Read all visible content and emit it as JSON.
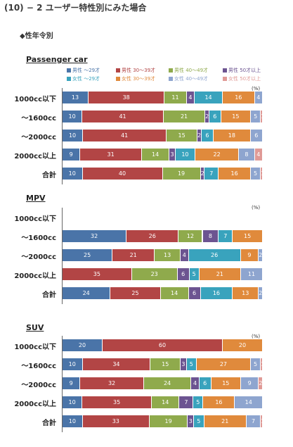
{
  "page": {
    "title": "(10) − 2 ユーザー特性別にみた場合",
    "subtitle": "◆性年令別"
  },
  "unit_label": "(%)",
  "colors": {
    "male_u29": "#4a74a8",
    "male_30s": "#b24545",
    "male_40s": "#8faa4c",
    "male_50plus": "#6c5491",
    "female_u29": "#39a3bd",
    "female_30s": "#e08a3c",
    "female_40s": "#8ea5cf",
    "female_50plus": "#e09a96"
  },
  "legend": [
    {
      "key": "male_u29",
      "label": "男性 ～29才"
    },
    {
      "key": "male_30s",
      "label": "男性 30～39才"
    },
    {
      "key": "male_40s",
      "label": "男性 40～49才"
    },
    {
      "key": "male_50plus",
      "label": "男性 50才以上"
    },
    {
      "key": "female_u29",
      "label": "女性 ～29才"
    },
    {
      "key": "female_30s",
      "label": "女性 30～39才"
    },
    {
      "key": "female_40s",
      "label": "女性 40～49才"
    },
    {
      "key": "female_50plus",
      "label": "女性 50才以上"
    }
  ],
  "chart_data": [
    {
      "type": "bar",
      "stacked": true,
      "orientation": "horizontal",
      "title": "Passenger car",
      "xlim": [
        0,
        100
      ],
      "categories": [
        "1000cc以下",
        "～1600cc",
        "～2000cc",
        "2000cc以上",
        "合計"
      ],
      "series": [
        {
          "name": "男性 ～29才",
          "key": "male_u29",
          "values": [
            13,
            10,
            10,
            9,
            10
          ]
        },
        {
          "name": "男性 30～39才",
          "key": "male_30s",
          "values": [
            38,
            41,
            41,
            31,
            40
          ]
        },
        {
          "name": "男性 40～49才",
          "key": "male_40s",
          "values": [
            11,
            21,
            15,
            14,
            19
          ]
        },
        {
          "name": "男性 50才以上",
          "key": "male_50plus",
          "values": [
            4,
            2,
            2,
            3,
            2
          ]
        },
        {
          "name": "女性 ～29才",
          "key": "female_u29",
          "values": [
            14,
            6,
            6,
            10,
            7
          ]
        },
        {
          "name": "女性 30～39才",
          "key": "female_30s",
          "values": [
            16,
            15,
            18,
            22,
            16
          ]
        },
        {
          "name": "女性 40～49才",
          "key": "female_40s",
          "values": [
            4,
            5,
            6,
            8,
            5
          ]
        },
        {
          "name": "女性 50才以上",
          "key": "female_50plus",
          "values": [
            0,
            1,
            0,
            4,
            1
          ]
        }
      ]
    },
    {
      "type": "bar",
      "stacked": true,
      "orientation": "horizontal",
      "title": "MPV",
      "xlim": [
        0,
        100
      ],
      "categories": [
        "1000cc以下",
        "～1600cc",
        "～2000cc",
        "2000cc以上",
        "合計"
      ],
      "series": [
        {
          "name": "男性 ～29才",
          "key": "male_u29",
          "values": [
            null,
            32,
            25,
            0,
            24
          ]
        },
        {
          "name": "男性 30～39才",
          "key": "male_30s",
          "values": [
            null,
            26,
            21,
            35,
            25
          ]
        },
        {
          "name": "男性 40～49才",
          "key": "male_40s",
          "values": [
            null,
            12,
            13,
            23,
            14
          ]
        },
        {
          "name": "男性 50才以上",
          "key": "male_50plus",
          "values": [
            null,
            8,
            4,
            6,
            6
          ]
        },
        {
          "name": "女性 ～29才",
          "key": "female_u29",
          "values": [
            null,
            7,
            26,
            5,
            16
          ]
        },
        {
          "name": "女性 30～39才",
          "key": "female_30s",
          "values": [
            null,
            15,
            9,
            21,
            13
          ]
        },
        {
          "name": "女性 40～49才",
          "key": "female_40s",
          "values": [
            null,
            0,
            2,
            11,
            2
          ]
        },
        {
          "name": "女性 50才以上",
          "key": "female_50plus",
          "values": [
            null,
            0,
            0,
            0,
            0
          ]
        }
      ]
    },
    {
      "type": "bar",
      "stacked": true,
      "orientation": "horizontal",
      "title": "SUV",
      "xlim": [
        0,
        100
      ],
      "categories": [
        "1000cc以下",
        "～1600cc",
        "～2000cc",
        "2000cc以上",
        "合計"
      ],
      "series": [
        {
          "name": "男性 ～29才",
          "key": "male_u29",
          "values": [
            20,
            10,
            9,
            10,
            10
          ]
        },
        {
          "name": "男性 30～39才",
          "key": "male_30s",
          "values": [
            60,
            34,
            32,
            35,
            33
          ]
        },
        {
          "name": "男性 40～49才",
          "key": "male_40s",
          "values": [
            0,
            15,
            24,
            14,
            19
          ]
        },
        {
          "name": "男性 50才以上",
          "key": "male_50plus",
          "values": [
            0,
            3,
            4,
            7,
            3
          ]
        },
        {
          "name": "女性 ～29才",
          "key": "female_u29",
          "values": [
            0,
            5,
            6,
            5,
            5
          ]
        },
        {
          "name": "女性 30～39才",
          "key": "female_30s",
          "values": [
            20,
            27,
            15,
            16,
            21
          ]
        },
        {
          "name": "女性 40～49才",
          "key": "female_40s",
          "values": [
            0,
            5,
            9,
            14,
            7
          ]
        },
        {
          "name": "女性 50才以上",
          "key": "female_50plus",
          "values": [
            0,
            1,
            2,
            0,
            1
          ]
        }
      ]
    }
  ]
}
